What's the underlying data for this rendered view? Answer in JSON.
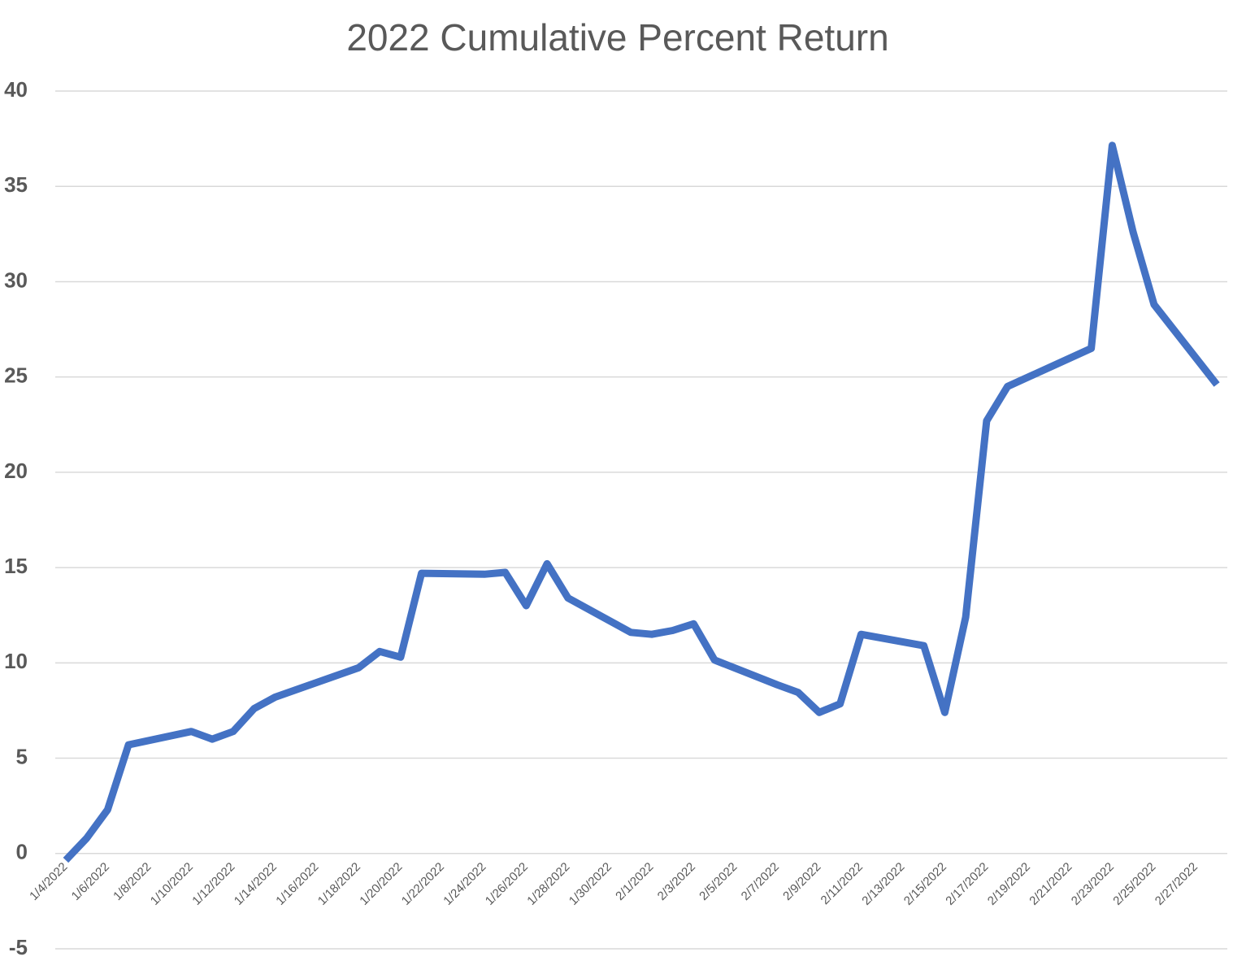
{
  "chart_data": {
    "type": "line",
    "title": "2022 Cumulative Percent Return",
    "x": [
      "1/4/2022",
      "1/5/2022",
      "1/6/2022",
      "1/7/2022",
      "1/10/2022",
      "1/11/2022",
      "1/12/2022",
      "1/13/2022",
      "1/14/2022",
      "1/18/2022",
      "1/19/2022",
      "1/20/2022",
      "1/21/2022",
      "1/24/2022",
      "1/25/2022",
      "1/26/2022",
      "1/27/2022",
      "1/28/2022",
      "1/31/2022",
      "2/1/2022",
      "2/2/2022",
      "2/3/2022",
      "2/4/2022",
      "2/7/2022",
      "2/8/2022",
      "2/9/2022",
      "2/10/2022",
      "2/11/2022",
      "2/14/2022",
      "2/15/2022",
      "2/16/2022",
      "2/17/2022",
      "2/18/2022",
      "2/22/2022",
      "2/23/2022",
      "2/24/2022",
      "2/25/2022",
      "2/28/2022"
    ],
    "series": [
      {
        "name": "Cumulative Percent Return",
        "color": "#4472c4",
        "values": [
          -0.35,
          0.8,
          2.3,
          5.7,
          6.4,
          6.0,
          6.4,
          7.6,
          8.2,
          9.75,
          10.6,
          10.3,
          14.7,
          14.65,
          14.75,
          13.0,
          15.2,
          13.4,
          11.6,
          11.5,
          11.7,
          12.05,
          10.15,
          8.85,
          8.45,
          7.4,
          7.85,
          11.5,
          10.9,
          7.4,
          12.4,
          22.7,
          24.5,
          26.5,
          37.15,
          32.6,
          28.8,
          24.6
        ]
      }
    ],
    "xlim": [
      "1/4/2022",
      "2/28/2022"
    ],
    "xticks": [
      "1/4/2022",
      "1/6/2022",
      "1/8/2022",
      "1/10/2022",
      "1/12/2022",
      "1/14/2022",
      "1/16/2022",
      "1/18/2022",
      "1/20/2022",
      "1/22/2022",
      "1/24/2022",
      "1/26/2022",
      "1/28/2022",
      "1/30/2022",
      "2/1/2022",
      "2/3/2022",
      "2/5/2022",
      "2/7/2022",
      "2/9/2022",
      "2/11/2022",
      "2/13/2022",
      "2/15/2022",
      "2/17/2022",
      "2/19/2022",
      "2/21/2022",
      "2/23/2022",
      "2/25/2022",
      "2/27/2022"
    ],
    "ylim": [
      -5,
      40
    ],
    "yticks": [
      -5,
      0,
      5,
      10,
      15,
      20,
      25,
      30,
      35,
      40
    ],
    "grid": true
  }
}
